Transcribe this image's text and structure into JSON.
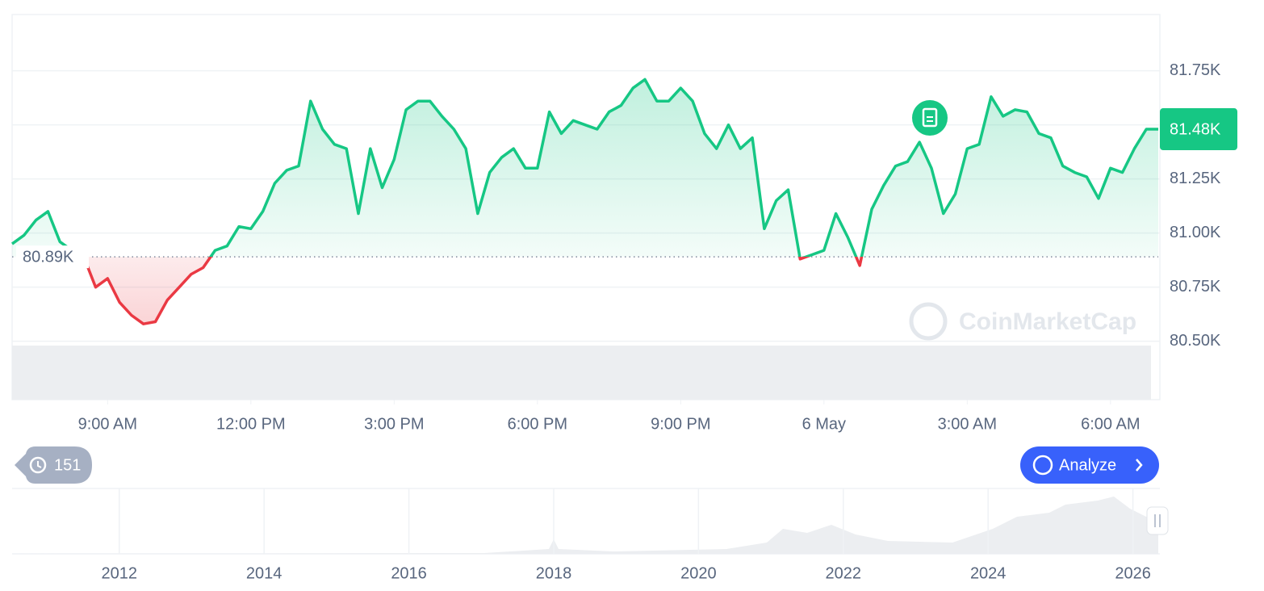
{
  "chart_data": {
    "type": "line",
    "x": [
      7,
      7.25,
      7.5,
      7.75,
      8,
      8.25,
      8.5,
      8.75,
      9,
      9.25,
      9.5,
      9.75,
      10,
      10.25,
      10.5,
      10.75,
      11,
      11.25,
      11.5,
      11.75,
      12,
      12.25,
      12.5,
      12.75,
      13,
      13.25,
      13.5,
      13.75,
      14,
      14.25,
      14.5,
      14.75,
      15,
      15.25,
      15.5,
      15.75,
      16,
      16.25,
      16.5,
      16.75,
      17,
      17.25,
      17.5,
      17.75,
      18,
      18.25,
      18.5,
      18.75,
      19,
      19.25,
      19.5,
      19.75,
      20,
      20.25,
      20.5,
      20.75,
      21,
      21.25,
      21.5,
      21.75,
      22,
      22.25,
      22.5,
      22.75,
      23,
      23.25,
      23.5,
      23.75,
      24,
      24.25,
      24.5,
      24.75,
      25,
      25.25,
      25.5,
      25.75,
      26,
      26.25,
      26.5,
      26.75,
      27,
      27.25,
      27.5,
      27.75,
      28,
      28.25,
      28.5,
      28.75,
      29,
      29.25,
      29.5,
      29.75,
      30,
      30.25,
      30.5,
      30.75,
      31
    ],
    "series": [
      {
        "values": [
          80950,
          80990,
          81060,
          81100,
          80960,
          80920,
          80890,
          80750,
          80790,
          80680,
          80620,
          80580,
          80590,
          80690,
          80750,
          80810,
          80840,
          80920,
          80940,
          81030,
          81020,
          81100,
          81230,
          81290,
          81310,
          81610,
          81480,
          81410,
          81390,
          81090,
          81390,
          81210,
          81340,
          81570,
          81610,
          81610,
          81540,
          81480,
          81390,
          81090,
          81280,
          81350,
          81390,
          81300,
          81300,
          81560,
          81460,
          81520,
          81500,
          81480,
          81560,
          81590,
          81670,
          81710,
          81610,
          81610,
          81670,
          81610,
          81460,
          81390,
          81500,
          81390,
          81440,
          81020,
          81150,
          81200,
          80880,
          80900,
          80920,
          81090,
          80980,
          80850,
          81110,
          81220,
          81310,
          81330,
          81420,
          81300,
          81090,
          81180,
          81390,
          81410,
          81630,
          81540,
          81570,
          81560,
          81460,
          81440,
          81310,
          81280,
          81260,
          81160,
          81300,
          81280,
          81390,
          81480,
          81480
        ]
      }
    ],
    "up_color": "#16c784",
    "down_color": "#ea3943",
    "xlim": [
      7,
      31
    ],
    "xticks": [
      {
        "value": 9,
        "label": "9:00 AM"
      },
      {
        "value": 12,
        "label": "12:00 PM"
      },
      {
        "value": 15,
        "label": "3:00 PM"
      },
      {
        "value": 18,
        "label": "6:00 PM"
      },
      {
        "value": 21,
        "label": "9:00 PM"
      },
      {
        "value": 24,
        "label": "6 May"
      },
      {
        "value": 27,
        "label": "3:00 AM"
      },
      {
        "value": 30,
        "label": "6:00 AM"
      }
    ],
    "ylim": [
      80230,
      82010
    ],
    "yticks": [
      {
        "value": 80500,
        "label": "80.50K"
      },
      {
        "value": 80750,
        "label": "80.75K"
      },
      {
        "value": 81000,
        "label": "81.00K"
      },
      {
        "value": 81250,
        "label": "81.25K"
      },
      {
        "value": 81500,
        "label": "81.50K"
      },
      {
        "value": 81750,
        "label": "81.75K"
      }
    ],
    "grid": true,
    "baseline": {
      "value": 80890,
      "label": "80.89K"
    },
    "last_price": {
      "value": 81480,
      "label": "81.48K"
    },
    "watermark": "CoinMarketCap",
    "history_count": "151",
    "analyze_button": "Analyze",
    "navigator": {
      "xlim": [
        2010.52,
        2026.35
      ],
      "xticks": [
        2012,
        2014,
        2016,
        2018,
        2020,
        2022,
        2024,
        2026
      ]
    }
  }
}
